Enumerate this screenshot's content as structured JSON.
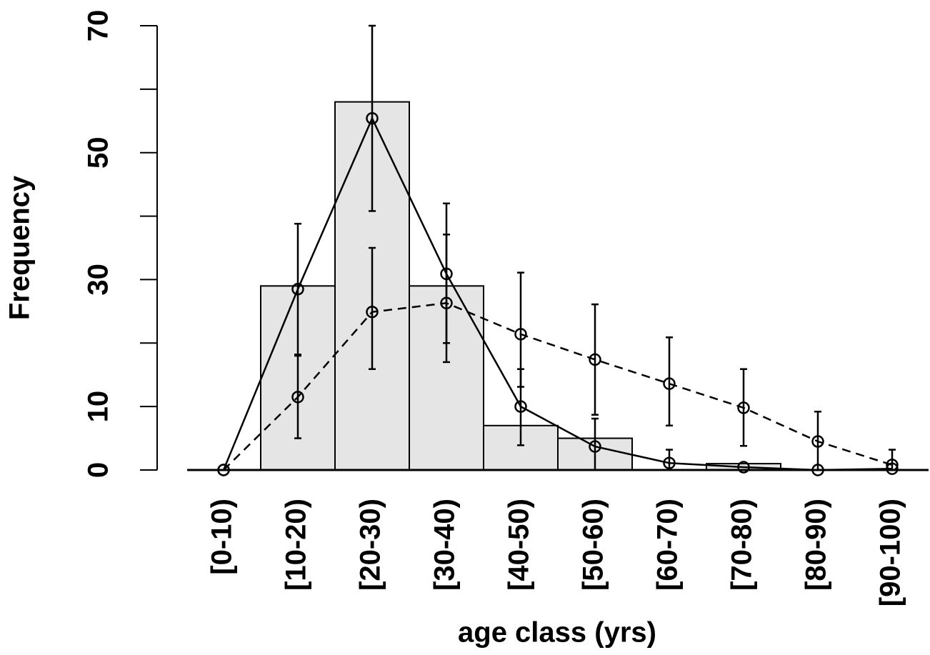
{
  "chart_data": {
    "type": "bar",
    "xlabel": "age class (yrs)",
    "ylabel": "Frequency",
    "categories": [
      "[0-10)",
      "[10-20)",
      "[20-30)",
      "[30-40)",
      "[40-50)",
      "[50-60)",
      "[60-70)",
      "[70-80)",
      "[80-90)",
      "[90-100)"
    ],
    "values": [
      0,
      29,
      58,
      29,
      7,
      5,
      0,
      1,
      0,
      0
    ],
    "color": "#e5e5e5",
    "ylim": [
      0,
      70
    ],
    "yticks": [
      0,
      10,
      30,
      50,
      70
    ],
    "yminorticks": [
      20,
      40,
      60
    ],
    "series": [
      {
        "type": "line",
        "dash": false,
        "color": "#000000",
        "values": [
          0,
          28.5,
          55.4,
          30.9,
          10,
          3.7,
          1.1,
          0.45,
          0,
          0.2
        ],
        "lower": [
          null,
          18.2,
          40.8,
          20,
          3.9,
          0,
          0,
          null,
          null,
          null
        ],
        "upper": [
          null,
          38.8,
          70,
          42,
          15.9,
          8.1,
          3.2,
          null,
          null,
          null
        ]
      },
      {
        "type": "line",
        "dash": true,
        "color": "#000000",
        "values": [
          0,
          11.5,
          24.9,
          26.3,
          21.4,
          17.4,
          13.6,
          9.8,
          4.5,
          0.8
        ],
        "lower": [
          null,
          5,
          15.9,
          17,
          13.1,
          8.7,
          7,
          3.8,
          0,
          0
        ],
        "upper": [
          null,
          18,
          35,
          37.1,
          31.1,
          26.1,
          20.9,
          15.9,
          9.2,
          3.2
        ]
      }
    ]
  }
}
